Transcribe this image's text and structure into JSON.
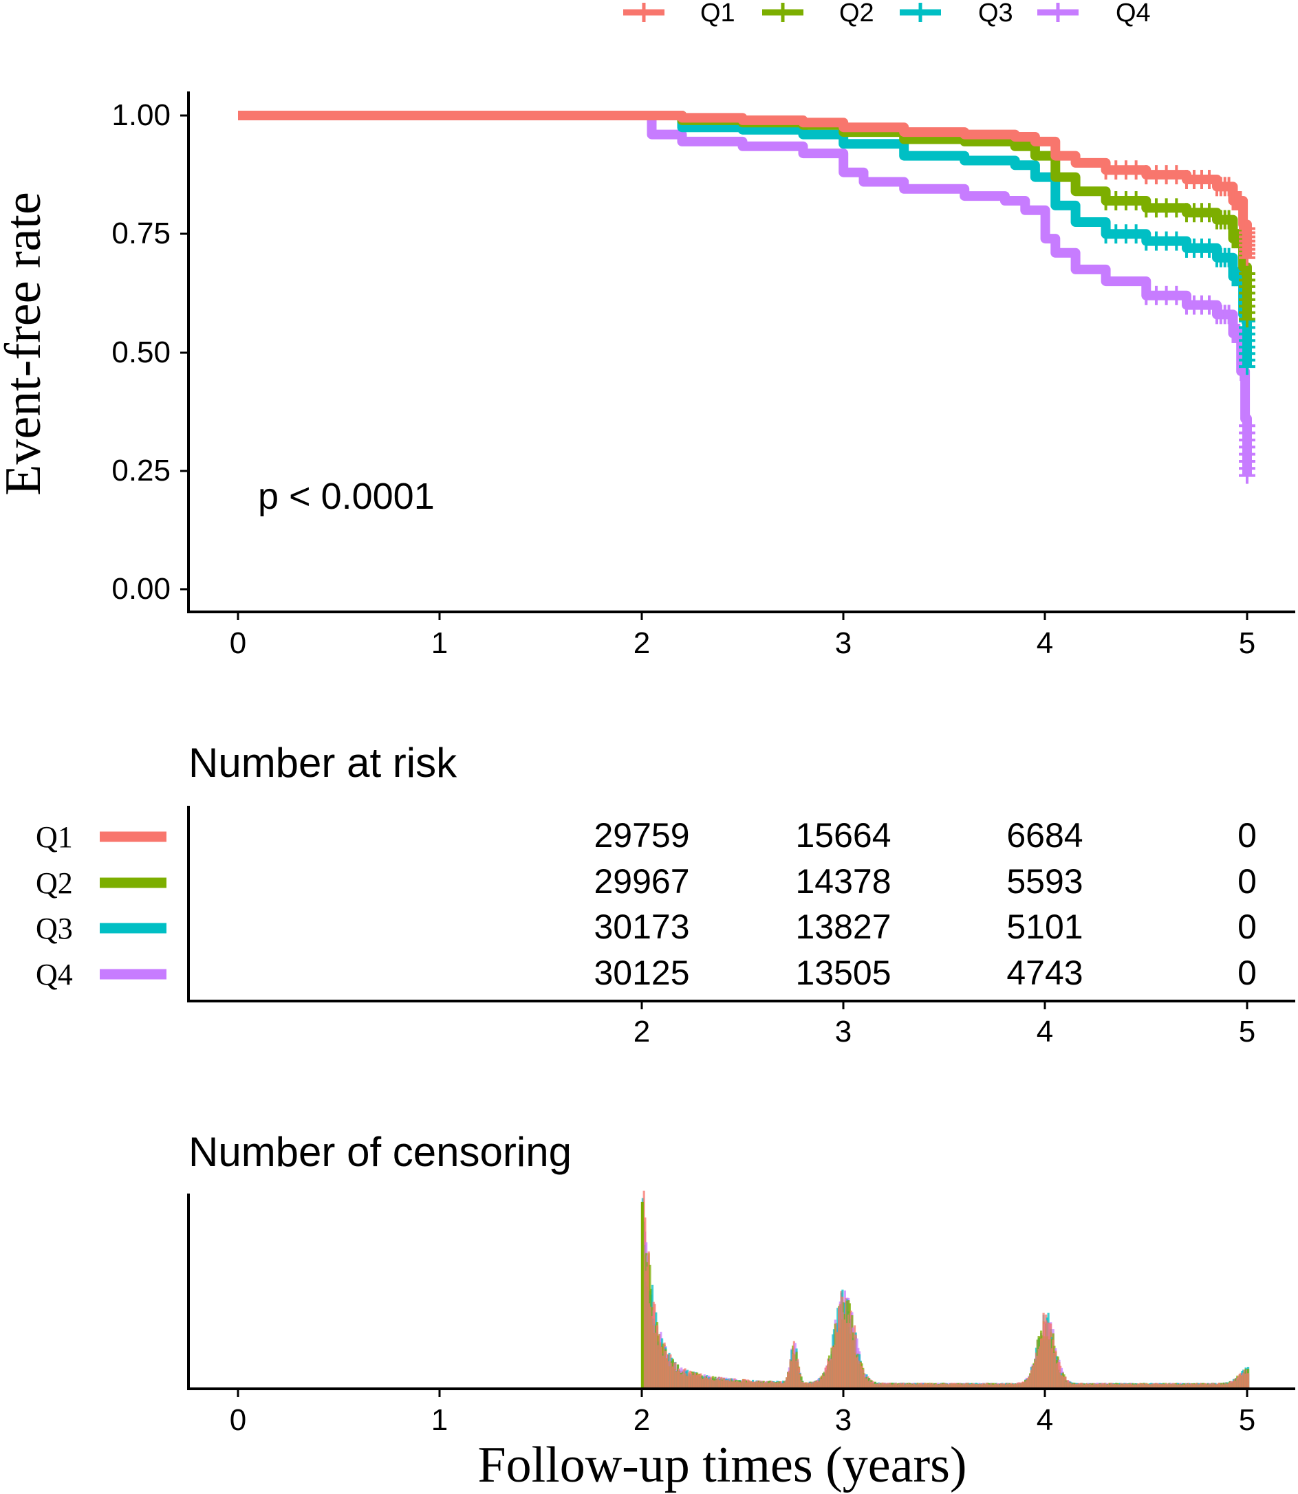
{
  "chart_data": [
    {
      "type": "line",
      "subtype": "kaplan-meier",
      "title": "",
      "xlabel": "",
      "ylabel": "Event-free rate",
      "xlim": [
        0,
        5
      ],
      "ylim": [
        0,
        1
      ],
      "xticks": [
        "0",
        "1",
        "2",
        "3",
        "4",
        "5"
      ],
      "yticks": [
        "0.00",
        "0.25",
        "0.50",
        "0.75",
        "1.00"
      ],
      "annotation": "p < 0.0001",
      "legend": {
        "position": "top",
        "entries": [
          {
            "label": "Q1",
            "color": "#F8766D"
          },
          {
            "label": "Q2",
            "color": "#7CAE00"
          },
          {
            "label": "Q3",
            "color": "#00BFC4"
          },
          {
            "label": "Q4",
            "color": "#C77CFF"
          }
        ]
      },
      "series": [
        {
          "name": "Q1",
          "color": "#F8766D",
          "x": [
            0,
            2,
            2.2,
            2.5,
            2.8,
            3.0,
            3.3,
            3.6,
            3.85,
            3.95,
            4.05,
            4.15,
            4.3,
            4.5,
            4.7,
            4.85,
            4.93,
            4.98,
            5.0
          ],
          "y": [
            1,
            1,
            0.995,
            0.99,
            0.985,
            0.975,
            0.965,
            0.96,
            0.955,
            0.945,
            0.915,
            0.9,
            0.885,
            0.875,
            0.865,
            0.85,
            0.82,
            0.77,
            0.7
          ]
        },
        {
          "name": "Q2",
          "color": "#7CAE00",
          "x": [
            0,
            2,
            2.2,
            2.5,
            2.8,
            3.0,
            3.3,
            3.6,
            3.85,
            3.95,
            4.05,
            4.15,
            4.3,
            4.5,
            4.7,
            4.85,
            4.93,
            4.98,
            5.0
          ],
          "y": [
            1,
            1,
            0.99,
            0.985,
            0.98,
            0.965,
            0.95,
            0.945,
            0.935,
            0.915,
            0.87,
            0.84,
            0.82,
            0.805,
            0.795,
            0.78,
            0.74,
            0.68,
            0.57
          ]
        },
        {
          "name": "Q3",
          "color": "#00BFC4",
          "x": [
            0,
            2,
            2.2,
            2.5,
            2.8,
            3.0,
            3.3,
            3.6,
            3.85,
            3.95,
            4.05,
            4.15,
            4.3,
            4.5,
            4.7,
            4.85,
            4.93,
            4.98,
            5.0
          ],
          "y": [
            1,
            1,
            0.975,
            0.97,
            0.96,
            0.94,
            0.915,
            0.905,
            0.895,
            0.87,
            0.81,
            0.775,
            0.75,
            0.735,
            0.72,
            0.7,
            0.66,
            0.58,
            0.47
          ]
        },
        {
          "name": "Q4",
          "color": "#C77CFF",
          "x": [
            0,
            2,
            2.05,
            2.2,
            2.5,
            2.8,
            3.0,
            3.1,
            3.3,
            3.6,
            3.8,
            3.9,
            4.0,
            4.05,
            4.15,
            4.3,
            4.5,
            4.7,
            4.85,
            4.93,
            4.97,
            4.99,
            5.0
          ],
          "y": [
            1,
            1,
            0.96,
            0.945,
            0.935,
            0.92,
            0.88,
            0.86,
            0.845,
            0.83,
            0.82,
            0.8,
            0.74,
            0.71,
            0.675,
            0.65,
            0.62,
            0.6,
            0.58,
            0.54,
            0.46,
            0.36,
            0.24
          ]
        }
      ]
    },
    {
      "type": "table",
      "title": "Number at risk",
      "xticks": [
        "2",
        "3",
        "4",
        "5"
      ],
      "x": [
        2,
        3,
        4,
        5
      ],
      "rows": [
        {
          "name": "Q1",
          "color": "#F8766D",
          "values": [
            "29759",
            "15664",
            "6684",
            "0"
          ]
        },
        {
          "name": "Q2",
          "color": "#7CAE00",
          "values": [
            "29967",
            "14378",
            "5593",
            "0"
          ]
        },
        {
          "name": "Q3",
          "color": "#00BFC4",
          "values": [
            "30173",
            "13827",
            "5101",
            "0"
          ]
        },
        {
          "name": "Q4",
          "color": "#C77CFF",
          "values": [
            "30125",
            "13505",
            "4743",
            "0"
          ]
        }
      ]
    },
    {
      "type": "bar",
      "subtype": "censoring-histogram",
      "title": "Number of censoring",
      "xlabel": "Follow-up times (years)",
      "xlim": [
        0,
        5
      ],
      "xticks": [
        "0",
        "1",
        "2",
        "3",
        "4",
        "5"
      ],
      "ylim": [
        0,
        1
      ],
      "profile_peaks": [
        {
          "x": 2.0,
          "height": 1.0
        },
        {
          "x": 2.75,
          "height": 0.18
        },
        {
          "x": 3.0,
          "height": 0.42
        },
        {
          "x": 4.0,
          "height": 0.32
        },
        {
          "x": 5.0,
          "height": 0.07
        }
      ]
    }
  ]
}
